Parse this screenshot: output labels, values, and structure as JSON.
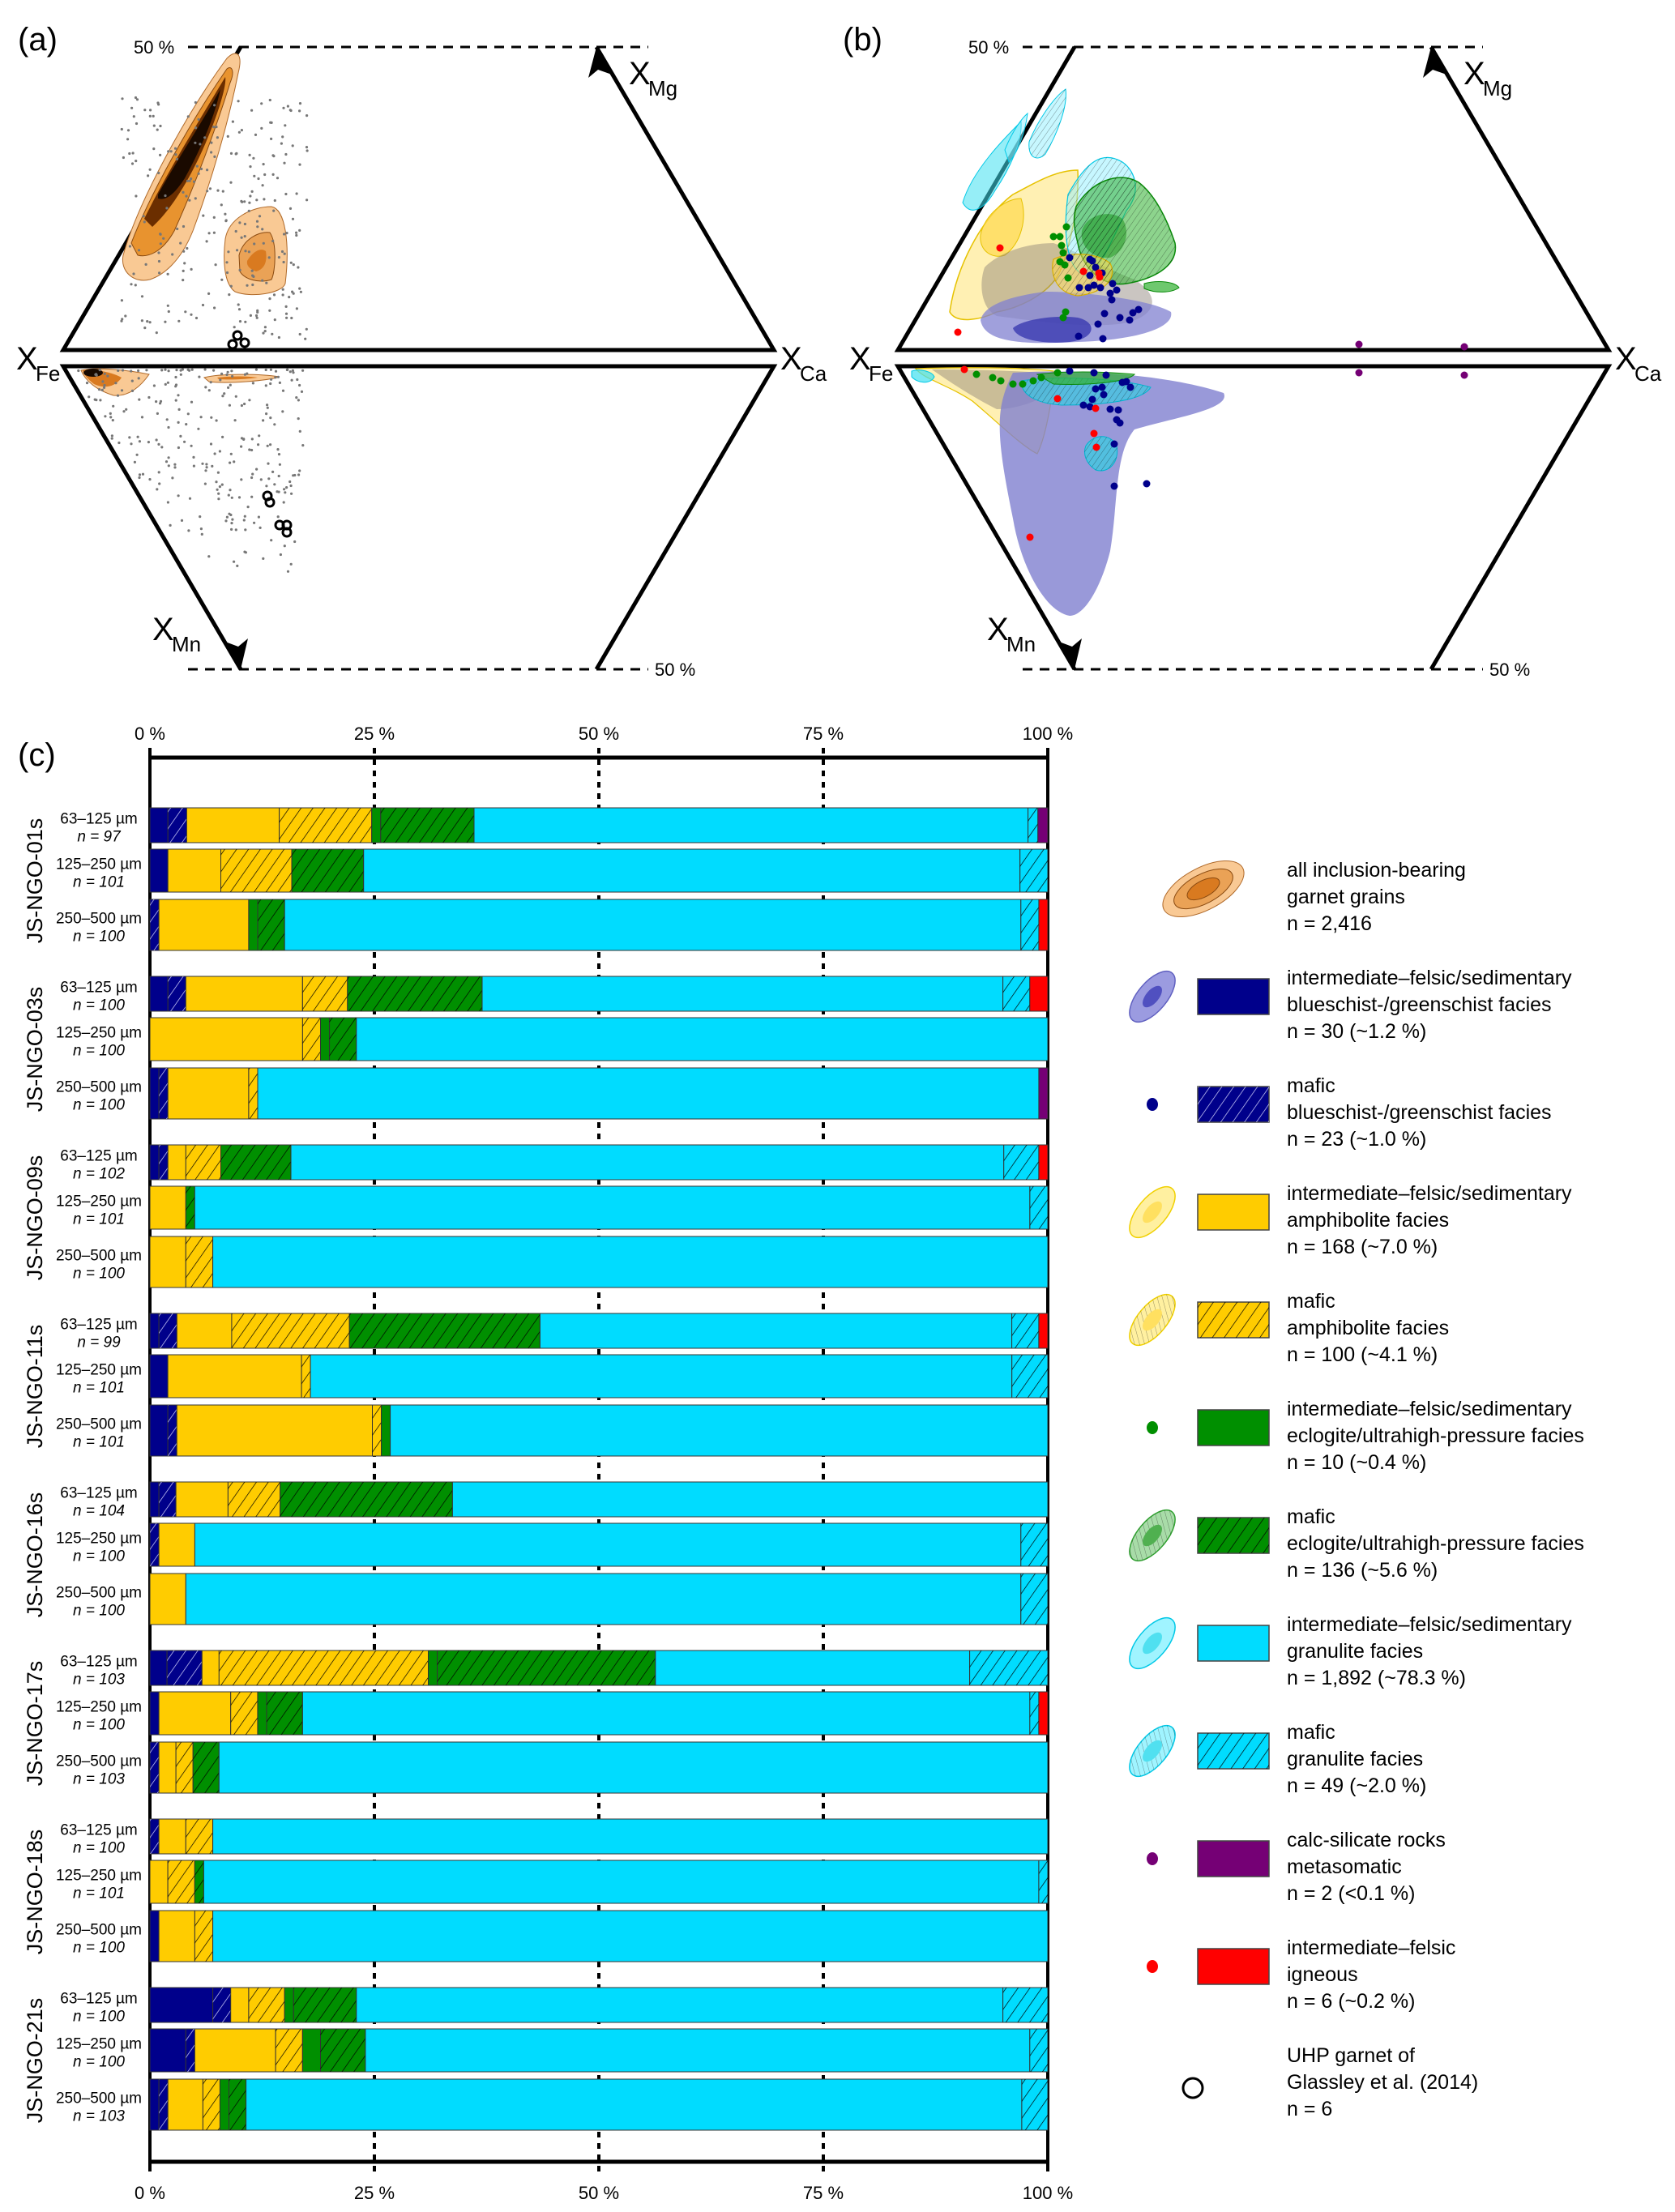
{
  "panels": {
    "a": {
      "label": "(a)"
    },
    "b": {
      "label": "(b)"
    },
    "c": {
      "label": "(c)"
    }
  },
  "ternary": {
    "top_dashed_label": "50 %",
    "bottom_dashed_label": "50 %",
    "x_fe": {
      "main": "X",
      "sub": "Fe"
    },
    "x_ca": {
      "main": "X",
      "sub": "Ca"
    },
    "x_mg": {
      "main": "X",
      "sub": "Mg"
    },
    "x_mn": {
      "main": "X",
      "sub": "Mn"
    }
  },
  "colors": {
    "blue": "#00008b",
    "yellow": "#ffcc00",
    "green": "#008f00",
    "cyan": "#00dcff",
    "purple": "#750075",
    "red": "#ff0000",
    "orange_light": "#f9c994",
    "orange_mid": "#e8932f",
    "orange_dark": "#8a3d00"
  },
  "chart_data": {
    "type": "bar",
    "orientation": "horizontal-stacked-100",
    "xlim": [
      0,
      100
    ],
    "x_ticks": [
      "0 %",
      "25 %",
      "50 %",
      "75 %",
      "100 %"
    ],
    "grid": "dotted at 25/50/75",
    "series": [
      {
        "key": "bs_if",
        "name": "intermediate–felsic/sedimentary blueschist-/greenschist facies",
        "color": "#00008b",
        "hatch": false
      },
      {
        "key": "bs_m",
        "name": "mafic blueschist-/greenschist facies",
        "color": "#00008b",
        "hatch": true
      },
      {
        "key": "am_if",
        "name": "intermediate–felsic/sedimentary amphibolite facies",
        "color": "#ffcc00",
        "hatch": false
      },
      {
        "key": "am_m",
        "name": "mafic amphibolite facies",
        "color": "#ffcc00",
        "hatch": true
      },
      {
        "key": "ec_if",
        "name": "intermediate–felsic/sedimentary eclogite/ultrahigh-pressure facies",
        "color": "#008f00",
        "hatch": false
      },
      {
        "key": "ec_m",
        "name": "mafic eclogite/ultrahigh-pressure facies",
        "color": "#008f00",
        "hatch": true
      },
      {
        "key": "gr_if",
        "name": "intermediate–felsic/sedimentary granulite facies",
        "color": "#00dcff",
        "hatch": false
      },
      {
        "key": "gr_m",
        "name": "mafic granulite facies",
        "color": "#00dcff",
        "hatch": true
      },
      {
        "key": "cs",
        "name": "calc-silicate rocks metasomatic",
        "color": "#750075",
        "hatch": false
      },
      {
        "key": "ig",
        "name": "intermediate–felsic igneous",
        "color": "#ff0000",
        "hatch": false
      }
    ],
    "groups": [
      {
        "sample": "JS-NGO-01s",
        "rows": [
          {
            "size": "63–125 µm",
            "n": "n = 97",
            "values": [
              2.0,
              2.1,
              10.3,
              10.3,
              1.0,
              10.4,
              61.7,
              1.1,
              1.1,
              0
            ]
          },
          {
            "size": "125–250 µm",
            "n": "n = 101",
            "values": [
              2.0,
              0,
              5.9,
              7.9,
              0,
              8.0,
              73.1,
              3.1,
              0,
              0
            ]
          },
          {
            "size": "250–500 µm",
            "n": "n = 100",
            "values": [
              0,
              1.0,
              10.0,
              0,
              1.0,
              3.0,
              82.0,
              2.0,
              0,
              1.0
            ]
          }
        ]
      },
      {
        "sample": "JS-NGO-03s",
        "rows": [
          {
            "size": "63–125 µm",
            "n": "n = 100",
            "values": [
              2.0,
              2.0,
              13.0,
              5.0,
              0,
              15.0,
              58.0,
              3.0,
              0,
              2.0
            ]
          },
          {
            "size": "125–250 µm",
            "n": "n = 100",
            "values": [
              0,
              0,
              17.0,
              2.0,
              1.0,
              3.0,
              77.0,
              0,
              0,
              0
            ]
          },
          {
            "size": "250–500 µm",
            "n": "n = 100",
            "values": [
              1.0,
              1.0,
              9.0,
              1.0,
              0,
              0,
              87.0,
              0,
              1.0,
              0
            ]
          }
        ]
      },
      {
        "sample": "JS-NGO-09s",
        "rows": [
          {
            "size": "63–125 µm",
            "n": "n = 102",
            "values": [
              1.0,
              1.0,
              2.0,
              3.9,
              0,
              7.8,
              79.4,
              3.9,
              0,
              1.0
            ]
          },
          {
            "size": "125–250 µm",
            "n": "n = 101",
            "values": [
              0,
              0,
              4.0,
              0,
              0,
              1.0,
              93.1,
              2.0,
              0,
              0
            ]
          },
          {
            "size": "250–500 µm",
            "n": "n = 100",
            "values": [
              0,
              0,
              4.0,
              3.0,
              0,
              0,
              93.0,
              0,
              0,
              0
            ]
          }
        ]
      },
      {
        "sample": "JS-NGO-11s",
        "rows": [
          {
            "size": "63–125 µm",
            "n": "n = 99",
            "values": [
              1.0,
              2.0,
              6.1,
              13.1,
              0,
              21.2,
              52.5,
              3.0,
              0,
              1.0
            ]
          },
          {
            "size": "125–250 µm",
            "n": "n = 101",
            "values": [
              2.0,
              0,
              14.9,
              1.0,
              0,
              0,
              78.2,
              4.0,
              0,
              0
            ]
          },
          {
            "size": "250–500 µm",
            "n": "n = 101",
            "values": [
              2.0,
              1.0,
              21.8,
              1.0,
              1.0,
              0,
              73.3,
              0,
              0,
              0
            ]
          }
        ]
      },
      {
        "sample": "JS-NGO-16s",
        "rows": [
          {
            "size": "63–125 µm",
            "n": "n = 104",
            "values": [
              1.0,
              1.9,
              5.8,
              5.8,
              0,
              19.2,
              66.3,
              0,
              0,
              0
            ]
          },
          {
            "size": "125–250 µm",
            "n": "n = 100",
            "values": [
              0,
              1.0,
              4.0,
              0,
              0,
              0,
              92.0,
              3.0,
              0,
              0
            ]
          },
          {
            "size": "250–500 µm",
            "n": "n = 100",
            "values": [
              0,
              0,
              4.0,
              0,
              0,
              0,
              93.0,
              3.0,
              0,
              0
            ]
          }
        ]
      },
      {
        "sample": "JS-NGO-17s",
        "rows": [
          {
            "size": "63–125 µm",
            "n": "n = 103",
            "values": [
              1.9,
              3.9,
              1.9,
              23.3,
              1.0,
              24.3,
              35.0,
              8.7,
              0,
              0
            ]
          },
          {
            "size": "125–250 µm",
            "n": "n = 100",
            "values": [
              1.0,
              0,
              8.0,
              3.0,
              1.0,
              4.0,
              81.0,
              1.0,
              0,
              1.0
            ]
          },
          {
            "size": "250–500 µm",
            "n": "n = 103",
            "values": [
              0,
              1.0,
              1.9,
              1.9,
              0,
              2.9,
              92.3,
              0,
              0,
              0
            ]
          }
        ]
      },
      {
        "sample": "JS-NGO-18s",
        "rows": [
          {
            "size": "63–125 µm",
            "n": "n = 100",
            "values": [
              0,
              1.0,
              3.0,
              3.0,
              0,
              0,
              93.0,
              0,
              0,
              0
            ]
          },
          {
            "size": "125–250 µm",
            "n": "n = 101",
            "values": [
              0,
              0,
              2.0,
              3.0,
              0,
              1.0,
              93.1,
              1.0,
              0,
              0
            ]
          },
          {
            "size": "250–500 µm",
            "n": "n = 100",
            "values": [
              1.0,
              0,
              4.0,
              2.0,
              0,
              0,
              93.0,
              0,
              0,
              0
            ]
          }
        ]
      },
      {
        "sample": "JS-NGO-21s",
        "rows": [
          {
            "size": "63–125 µm",
            "n": "n = 100",
            "values": [
              7.0,
              2.0,
              2.0,
              4.0,
              1.0,
              7.0,
              72.0,
              5.0,
              0,
              0
            ]
          },
          {
            "size": "125–250 µm",
            "n": "n = 100",
            "values": [
              4.0,
              1.0,
              9.0,
              3.0,
              2.0,
              5.0,
              74.0,
              2.0,
              0,
              0
            ]
          },
          {
            "size": "250–500 µm",
            "n": "n = 103",
            "values": [
              1.0,
              1.0,
              3.9,
              1.9,
              1.0,
              1.9,
              86.4,
              2.9,
              0,
              0
            ]
          }
        ]
      }
    ]
  },
  "legend": [
    {
      "key": "all",
      "icon": "orange-density-ellipse",
      "lines": [
        "all inclusion-bearing",
        "garnet grains",
        "n = 2,416"
      ]
    },
    {
      "key": "bs_if",
      "icon": "blue-ellipse",
      "swatch": "solid",
      "color": "#00008b",
      "lines": [
        "intermediate–felsic/sedimentary",
        "blueschist-/greenschist facies",
        "n = 30 (~1.2 %)"
      ]
    },
    {
      "key": "bs_m",
      "icon": "blue-dot",
      "swatch": "hatched",
      "color": "#00008b",
      "lines": [
        "mafic",
        "blueschist-/greenschist facies",
        "n = 23 (~1.0 %)"
      ]
    },
    {
      "key": "am_if",
      "icon": "yellow-ellipse",
      "swatch": "solid",
      "color": "#ffcc00",
      "lines": [
        "intermediate–felsic/sedimentary",
        "amphibolite facies",
        "n = 168 (~7.0 %)"
      ]
    },
    {
      "key": "am_m",
      "icon": "yellow-hatched-ellipse",
      "swatch": "hatched",
      "color": "#ffcc00",
      "lines": [
        "mafic",
        "amphibolite facies",
        "n = 100 (~4.1 %)"
      ]
    },
    {
      "key": "ec_if",
      "icon": "green-dot",
      "swatch": "solid",
      "color": "#008f00",
      "lines": [
        "intermediate–felsic/sedimentary",
        "eclogite/ultrahigh-pressure facies",
        "n = 10 (~0.4 %)"
      ]
    },
    {
      "key": "ec_m",
      "icon": "green-hatched-ellipse",
      "swatch": "hatched",
      "color": "#008f00",
      "lines": [
        "mafic",
        "eclogite/ultrahigh-pressure facies",
        "n = 136 (~5.6 %)"
      ]
    },
    {
      "key": "gr_if",
      "icon": "cyan-ellipse",
      "swatch": "solid",
      "color": "#00dcff",
      "lines": [
        "intermediate–felsic/sedimentary",
        "granulite facies",
        "n = 1,892 (~78.3 %)"
      ]
    },
    {
      "key": "gr_m",
      "icon": "cyan-hatched-ellipse",
      "swatch": "hatched",
      "color": "#00dcff",
      "lines": [
        "mafic",
        "granulite facies",
        "n = 49 (~2.0 %)"
      ]
    },
    {
      "key": "cs",
      "icon": "purple-dot",
      "swatch": "solid",
      "color": "#750075",
      "lines": [
        "calc-silicate rocks",
        "metasomatic",
        "n = 2 (<0.1 %)"
      ]
    },
    {
      "key": "ig",
      "icon": "red-dot",
      "swatch": "solid",
      "color": "#ff0000",
      "lines": [
        "intermediate–felsic",
        "igneous",
        "n = 6 (~0.2 %)"
      ]
    },
    {
      "key": "uhp",
      "icon": "open-circle",
      "lines": [
        "UHP garnet of",
        "Glassley et al. (2014)",
        "n = 6"
      ]
    }
  ]
}
